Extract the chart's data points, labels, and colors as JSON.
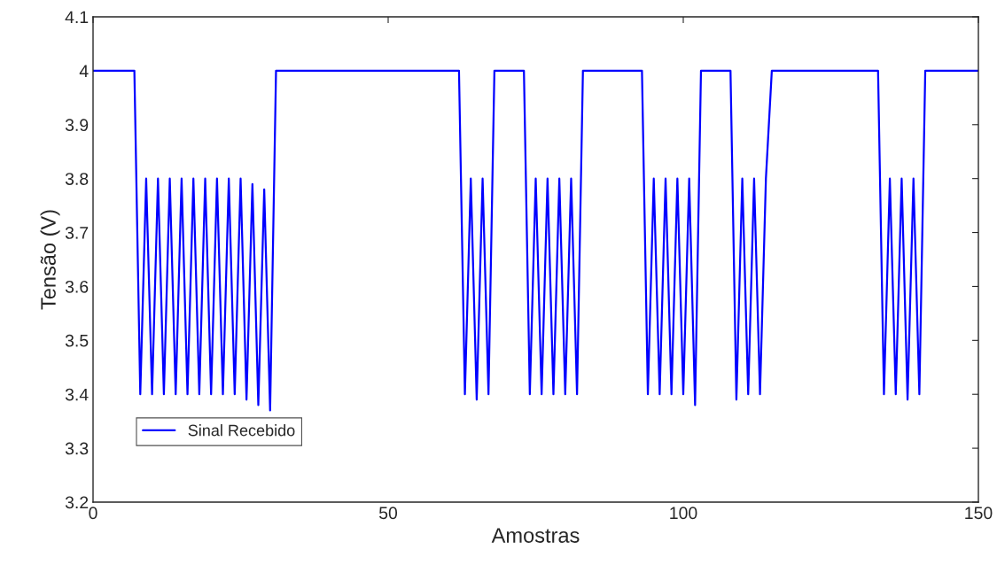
{
  "chart_data": {
    "type": "line",
    "xlabel": "Amostras",
    "ylabel": "Tensão (V)",
    "xlim": [
      0,
      150
    ],
    "ylim": [
      3.2,
      4.1
    ],
    "xticks": [
      0,
      50,
      100,
      150
    ],
    "yticks": [
      3.2,
      3.3,
      3.4,
      3.5,
      3.6,
      3.7,
      3.8,
      3.9,
      4,
      4.1
    ],
    "grid": false,
    "legend": "bottom left",
    "marker": "none",
    "line_style": "solid",
    "series": [
      {
        "name": "Sinal Recebido",
        "color": "#0000ff",
        "x": [
          0,
          7,
          8,
          9,
          10,
          11,
          12,
          13,
          14,
          15,
          16,
          17,
          18,
          19,
          20,
          21,
          22,
          23,
          24,
          25,
          26,
          27,
          28,
          29,
          30,
          31,
          62,
          63,
          64,
          65,
          66,
          67,
          68,
          73,
          74,
          75,
          76,
          77,
          78,
          79,
          80,
          81,
          82,
          83,
          93,
          94,
          95,
          96,
          97,
          98,
          99,
          100,
          101,
          102,
          103,
          108,
          109,
          110,
          111,
          112,
          113,
          114,
          115,
          133,
          134,
          135,
          136,
          137,
          138,
          139,
          140,
          141,
          150
        ],
        "values": [
          4,
          4,
          3.4,
          3.8,
          3.4,
          3.8,
          3.4,
          3.8,
          3.4,
          3.8,
          3.4,
          3.8,
          3.4,
          3.8,
          3.4,
          3.8,
          3.4,
          3.8,
          3.4,
          3.8,
          3.39,
          3.79,
          3.38,
          3.78,
          3.37,
          4,
          4,
          3.4,
          3.8,
          3.39,
          3.8,
          3.4,
          4,
          4,
          3.4,
          3.8,
          3.4,
          3.8,
          3.4,
          3.8,
          3.4,
          3.8,
          3.4,
          4,
          4,
          3.4,
          3.8,
          3.4,
          3.8,
          3.4,
          3.8,
          3.4,
          3.8,
          3.38,
          4,
          4,
          3.39,
          3.8,
          3.4,
          3.8,
          3.4,
          3.8,
          4,
          4,
          3.4,
          3.8,
          3.4,
          3.8,
          3.39,
          3.8,
          3.4,
          4,
          4
        ]
      }
    ]
  }
}
